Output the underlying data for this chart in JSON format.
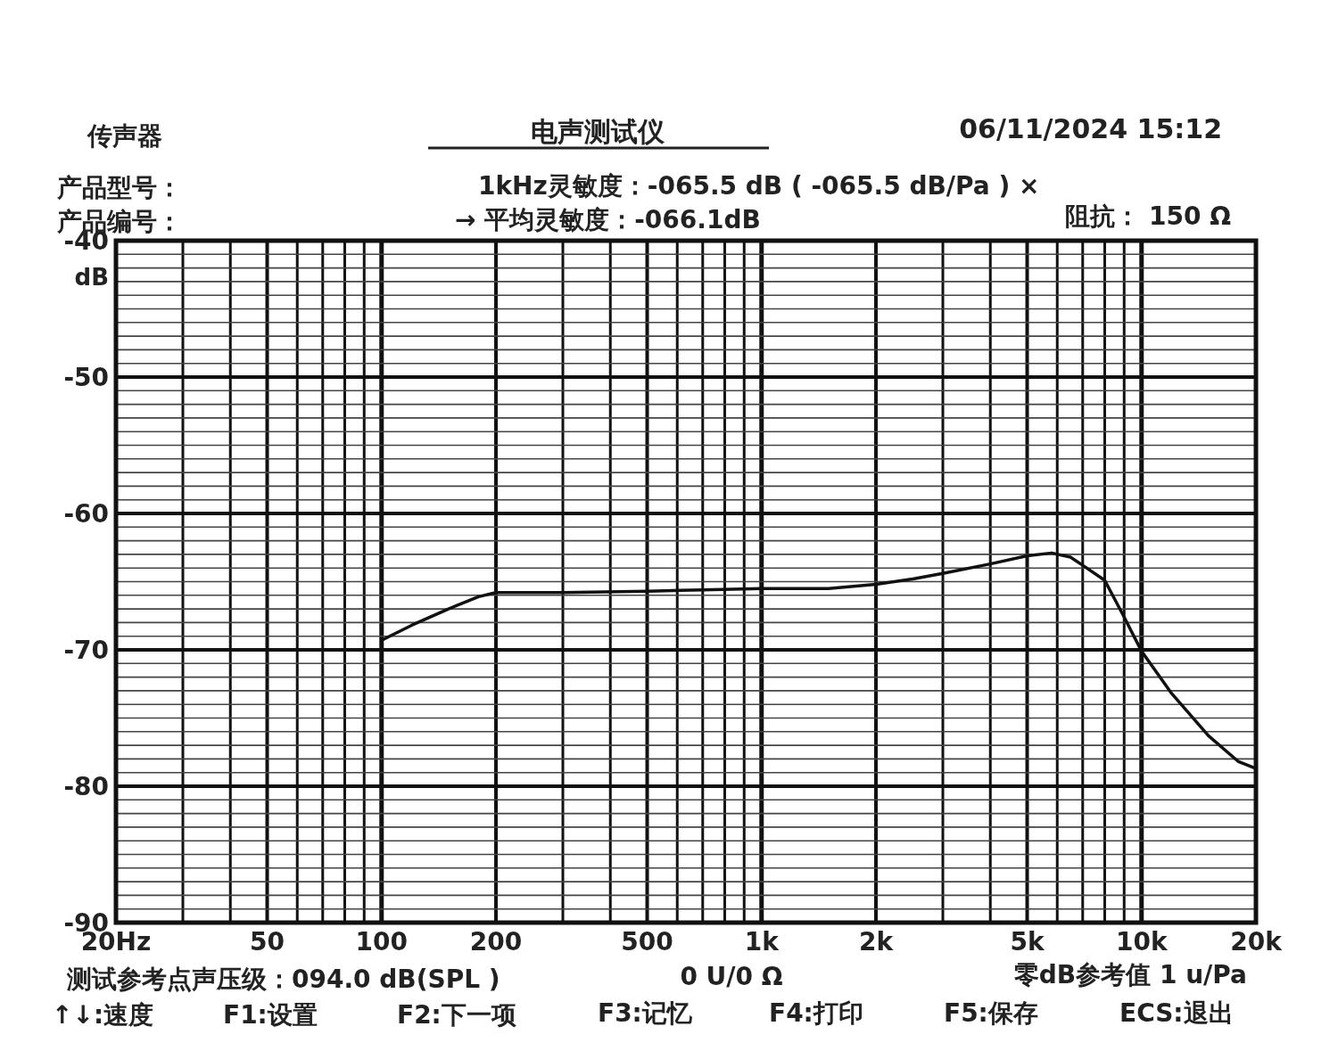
{
  "chart_data": {
    "type": "line",
    "title": "电声测试仪",
    "ylabel": "dB",
    "annotations": [
      "传声器",
      "06/11/2024  15:12",
      "产品型号：",
      "1kHz灵敏度：-065.5 dB ( -065.5 dB/Pa ) ×",
      "产品编号：",
      "→ 平均灵敏度：-066.1dB",
      "阻抗： 150 Ω",
      "测试参考点声压级：094.0 dB(SPL )",
      "0 U/0 Ω",
      "零dB参考值 1 u/Pa",
      "↑↓:速度",
      "F1:设置",
      "F2:下一项",
      "F3:记忆",
      "F4:打印",
      "F5:保存",
      "ECS:退出"
    ],
    "log": "x",
    "xlim": [
      20,
      20000
    ],
    "ylim": [
      -90,
      -40
    ],
    "xticks": [
      {
        "value": 20,
        "label": "20Hz"
      },
      50,
      100,
      200,
      500,
      {
        "value": 1000,
        "label": "1k"
      },
      {
        "value": 2000,
        "label": "2k"
      },
      {
        "value": 5000,
        "label": "5k"
      },
      {
        "value": 10000,
        "label": "10k"
      },
      {
        "value": 20000,
        "label": "20k"
      }
    ],
    "yticks": [
      -40,
      -50,
      -60,
      -70,
      -80,
      -90
    ],
    "grid": true,
    "series": [
      {
        "color": "#111111",
        "x": [
          100,
          120,
          150,
          180,
          200,
          300,
          500,
          700,
          1000,
          1500,
          2000,
          2500,
          3000,
          4000,
          5000,
          5800,
          6500,
          7000,
          8000,
          9000,
          10000,
          12000,
          15000,
          18000,
          20000
        ],
        "values": [
          -69.3,
          -68.2,
          -67.0,
          -66.1,
          -65.8,
          -65.8,
          -65.7,
          -65.6,
          -65.5,
          -65.5,
          -65.2,
          -64.8,
          -64.4,
          -63.7,
          -63.1,
          -62.9,
          -63.2,
          -63.8,
          -64.9,
          -67.6,
          -70.1,
          -73.2,
          -76.3,
          -78.2,
          -78.7
        ]
      }
    ]
  }
}
